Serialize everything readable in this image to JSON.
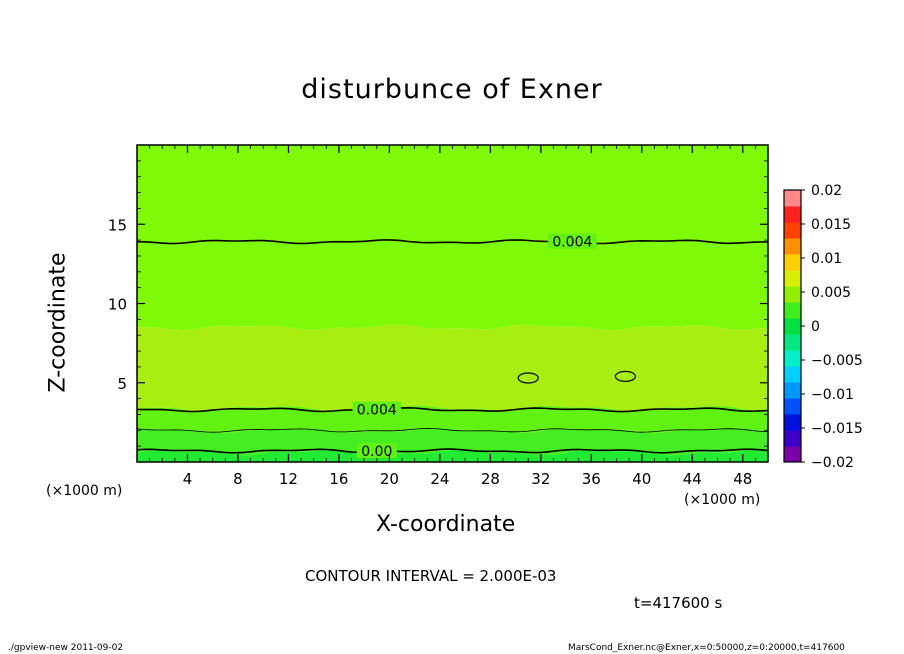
{
  "title": "disturbunce of Exner",
  "contour_interval_text": "CONTOUR INTERVAL = 2.000E-03",
  "time_text": "t=417600 s",
  "footer_left": "./gpview-new  2011-09-02",
  "footer_right": "MarsCond_Exner.nc@Exner,x=0:50000,z=0:20000,t=417600",
  "chart_data": {
    "type": "heatmap",
    "title": "disturbunce of Exner",
    "xlabel": "X-coordinate",
    "ylabel": "Z-coordinate",
    "x_unit": "(×1000 m)",
    "y_unit": "(×1000 m)",
    "xlim": [
      0,
      50
    ],
    "ylim": [
      0,
      20
    ],
    "x_ticks": [
      4,
      8,
      12,
      16,
      20,
      24,
      28,
      32,
      36,
      40,
      44,
      48
    ],
    "y_ticks": [
      5,
      10,
      15
    ],
    "grid": false,
    "colorbar": {
      "position": "right",
      "levels": [
        -0.02,
        -0.0175,
        -0.015,
        -0.0125,
        -0.01,
        -0.0075,
        -0.005,
        -0.0025,
        0,
        0.0025,
        0.005,
        0.0075,
        0.01,
        0.0125,
        0.015,
        0.0175,
        0.02
      ],
      "tick_labels": [
        "0.02",
        "0.015",
        "0.01",
        "0.005",
        "0",
        "−0.005",
        "−0.01",
        "−0.015",
        "−0.02"
      ],
      "colors": [
        "#7a00a8",
        "#3c00c8",
        "#0010e0",
        "#0050ff",
        "#0098ff",
        "#00d0ff",
        "#00f0c8",
        "#00e880",
        "#00e040",
        "#40ee20",
        "#90f000",
        "#d8f000",
        "#ffd000",
        "#ff9000",
        "#ff4000",
        "#ff2020",
        "#ff8888"
      ]
    },
    "bands": [
      {
        "z_range": [
          0,
          0.6
        ],
        "fill_value": 0.001,
        "color": "#22ea32"
      },
      {
        "z_range": [
          0.6,
          2.0
        ],
        "fill_value": 0.002,
        "color": "#45ee22"
      },
      {
        "z_range": [
          2.0,
          3.4
        ],
        "fill_value": 0.003,
        "color": "#62f212"
      },
      {
        "z_range": [
          3.4,
          8.5
        ],
        "fill_value": 0.0045,
        "color": "#a8ee10"
      },
      {
        "z_range": [
          8.5,
          20
        ],
        "fill_value": 0.0035,
        "color": "#7efa08"
      }
    ],
    "contour_lines": [
      {
        "value": 0.0,
        "label": "0.00",
        "z": 0.7,
        "label_x": 19
      },
      {
        "value": 0.002,
        "label": "",
        "z": 2.0,
        "label_x": null
      },
      {
        "value": 0.004,
        "label": "0.004",
        "z": 3.3,
        "label_x": 19
      },
      {
        "value": 0.004,
        "label": "0.004",
        "z": 13.9,
        "label_x": 34.5
      }
    ],
    "closed_contours": [
      {
        "x": 31,
        "z": 5.3
      },
      {
        "x": 38.7,
        "z": 5.4
      }
    ]
  }
}
